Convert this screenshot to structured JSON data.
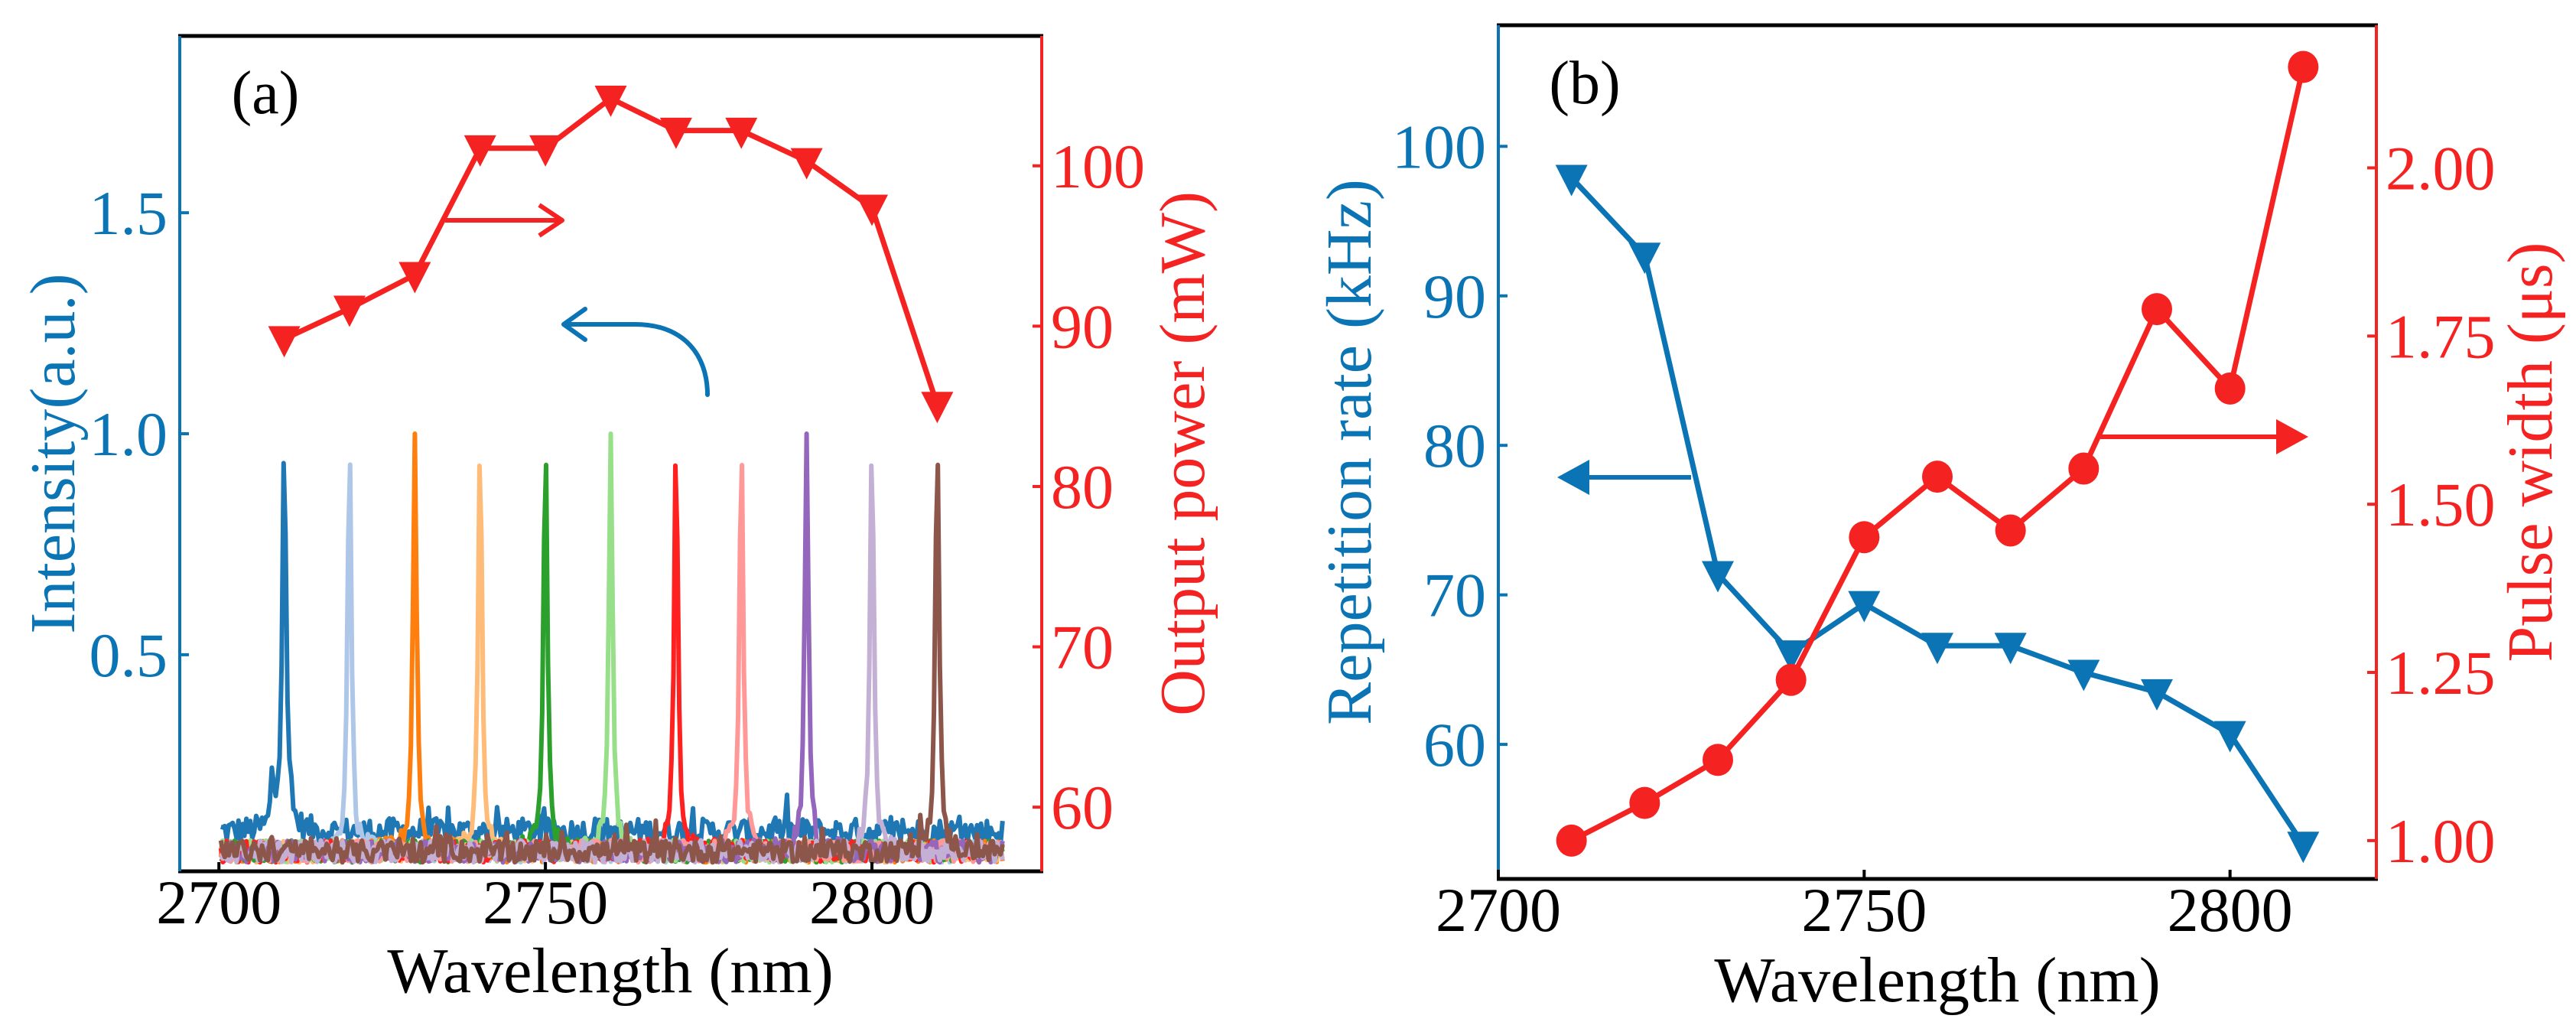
{
  "colors": {
    "blue": "#0a74b4",
    "red": "#f52222",
    "black": "#000000"
  },
  "chart_data": [
    {
      "panel_label": "(a)",
      "type": "line",
      "xlabel": "Wavelength (nm)",
      "ylabel": "Intensity(a.u.)",
      "y2label": "Output power (mW)",
      "xlim": [
        2694,
        2826
      ],
      "ylim": [
        0.01,
        1.9
      ],
      "y2lim": [
        56,
        108.1
      ],
      "xticks": [
        2700,
        2750,
        2800
      ],
      "xtick_labels": [
        "2700",
        "2750",
        "2800"
      ],
      "yticks": [
        0.5,
        1.0,
        1.5
      ],
      "ytick_labels": [
        "0.5",
        "1.0",
        "1.5"
      ],
      "y2ticks": [
        60,
        70,
        80,
        90,
        100
      ],
      "y2tick_labels": [
        "60",
        "70",
        "80",
        "90",
        "100"
      ],
      "spectra": [
        {
          "peak_nm": 2710,
          "peak_intensity": 1.0,
          "color": "#1f77b4"
        },
        {
          "peak_nm": 2720,
          "peak_intensity": 1.0,
          "color": "#aec7e8"
        },
        {
          "peak_nm": 2730,
          "peak_intensity": 1.0,
          "color": "#ff7f0e"
        },
        {
          "peak_nm": 2740,
          "peak_intensity": 1.0,
          "color": "#ffbb78"
        },
        {
          "peak_nm": 2750,
          "peak_intensity": 1.0,
          "color": "#2ca02c"
        },
        {
          "peak_nm": 2760,
          "peak_intensity": 1.0,
          "color": "#98df8a"
        },
        {
          "peak_nm": 2770,
          "peak_intensity": 1.0,
          "color": "#ff2020"
        },
        {
          "peak_nm": 2780,
          "peak_intensity": 1.0,
          "color": "#ff9896"
        },
        {
          "peak_nm": 2790,
          "peak_intensity": 1.0,
          "color": "#9467bd"
        },
        {
          "peak_nm": 2800,
          "peak_intensity": 1.0,
          "color": "#c5b0d5"
        },
        {
          "peak_nm": 2810,
          "peak_intensity": 1.0,
          "color": "#8c564b"
        }
      ],
      "series": [
        {
          "name": "Output power",
          "axis": "right",
          "marker": "triangle-down",
          "color": "#f52222",
          "x": [
            2710,
            2720,
            2730,
            2740,
            2750,
            2760,
            2770,
            2780,
            2790,
            2800,
            2810
          ],
          "y": [
            89.2,
            91.1,
            93.2,
            101.1,
            101.1,
            104.2,
            102.2,
            102.2,
            100.3,
            97.4,
            85.1
          ]
        }
      ],
      "annotations": [
        {
          "type": "arrow-right",
          "points_to": "right axis",
          "color": "#f52222"
        },
        {
          "type": "curved-arrow-left",
          "points_to": "left axis",
          "color": "#0a74b4"
        }
      ]
    },
    {
      "panel_label": "(b)",
      "type": "line",
      "xlabel": "Wavelength (nm)",
      "ylabel": "Repetition rate (kHz)",
      "y2label": "Pulse width (μs)",
      "xlim": [
        2700,
        2820
      ],
      "ylim": [
        51.0,
        108.1
      ],
      "y2lim": [
        0.943,
        2.212
      ],
      "xticks": [
        2700,
        2750,
        2800
      ],
      "xtick_labels": [
        "2700",
        "2750",
        "2800"
      ],
      "yticks": [
        60,
        70,
        80,
        90,
        100
      ],
      "ytick_labels": [
        "60",
        "70",
        "80",
        "90",
        "100"
      ],
      "y2ticks": [
        1.0,
        1.25,
        1.5,
        1.75,
        2.0
      ],
      "y2tick_labels": [
        "1.00",
        "1.25",
        "1.50",
        "1.75",
        "2.00"
      ],
      "series": [
        {
          "name": "Repetition rate",
          "axis": "left",
          "marker": "triangle-down",
          "color": "#0a74b4",
          "x": [
            2710,
            2720,
            2730,
            2740,
            2750,
            2760,
            2770,
            2780,
            2790,
            2800,
            2810
          ],
          "y": [
            97.9,
            92.7,
            71.4,
            66.1,
            69.4,
            66.6,
            66.6,
            64.8,
            63.5,
            60.7,
            53.3
          ]
        },
        {
          "name": "Pulse width",
          "axis": "right",
          "marker": "circle",
          "color": "#f52222",
          "x": [
            2710,
            2720,
            2730,
            2740,
            2750,
            2760,
            2770,
            2780,
            2790,
            2800,
            2810
          ],
          "y": [
            1.0,
            1.056,
            1.12,
            1.239,
            1.451,
            1.541,
            1.461,
            1.553,
            1.79,
            1.672,
            2.15
          ]
        }
      ],
      "annotations": [
        {
          "type": "arrow-left",
          "points_to": "left axis",
          "color": "#0a74b4"
        },
        {
          "type": "arrow-right",
          "points_to": "right axis",
          "color": "#f52222"
        }
      ]
    }
  ]
}
